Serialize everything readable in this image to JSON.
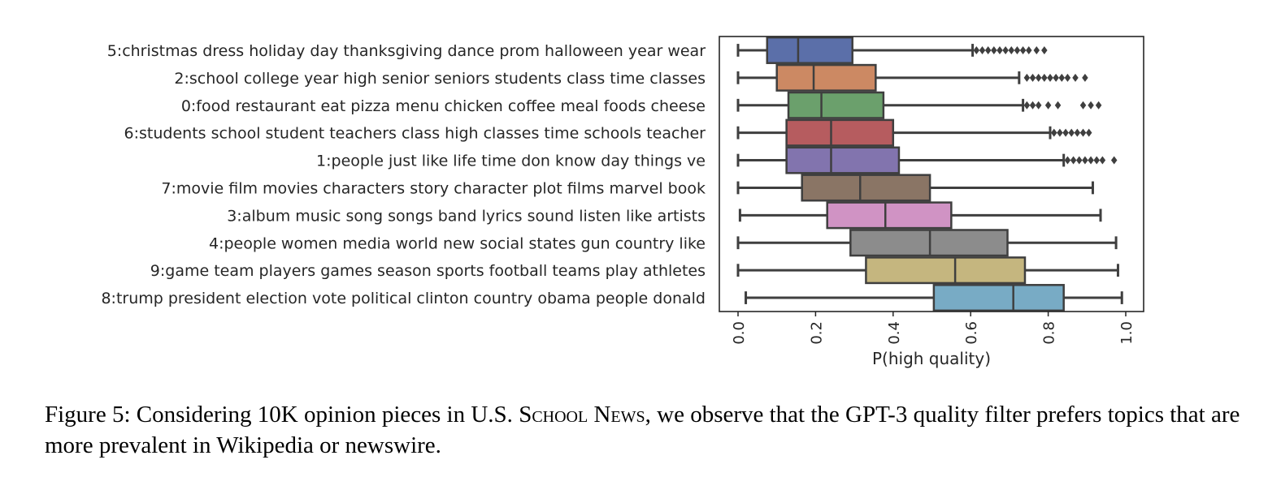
{
  "chart_data": {
    "type": "box",
    "orientation": "horizontal",
    "xlabel": "P(high quality)",
    "xlim": [
      -0.05,
      1.05
    ],
    "xticks": [
      "0.0",
      "0.2",
      "0.4",
      "0.6",
      "0.8",
      "1.0"
    ],
    "xtick_values": [
      0.0,
      0.2,
      0.4,
      0.6,
      0.8,
      1.0
    ],
    "grid": false,
    "categories": [
      {
        "label": "5:christmas dress holiday day thanksgiving dance prom halloween year wear",
        "color": "#5b6fa9",
        "min": 0.0,
        "q1": 0.075,
        "median": 0.155,
        "q3": 0.295,
        "max": 0.605,
        "outliers": [
          0.615,
          0.63,
          0.645,
          0.66,
          0.675,
          0.69,
          0.705,
          0.72,
          0.735,
          0.75,
          0.77,
          0.79
        ]
      },
      {
        "label": "2:school college year high senior seniors students class time classes",
        "color": "#cc8963",
        "min": 0.0,
        "q1": 0.1,
        "median": 0.195,
        "q3": 0.355,
        "max": 0.725,
        "outliers": [
          0.745,
          0.76,
          0.775,
          0.79,
          0.805,
          0.82,
          0.835,
          0.85,
          0.87,
          0.895
        ]
      },
      {
        "label": "0:food restaurant eat pizza menu chicken coffee meal foods cheese",
        "color": "#6ba06c",
        "min": 0.0,
        "q1": 0.13,
        "median": 0.215,
        "q3": 0.375,
        "max": 0.735,
        "outliers": [
          0.745,
          0.76,
          0.775,
          0.8,
          0.825,
          0.89,
          0.91,
          0.93
        ]
      },
      {
        "label": "6:students school student teachers class high classes time schools teacher",
        "color": "#b65c5f",
        "min": 0.0,
        "q1": 0.125,
        "median": 0.24,
        "q3": 0.4,
        "max": 0.805,
        "outliers": [
          0.815,
          0.83,
          0.845,
          0.86,
          0.875,
          0.89,
          0.905
        ]
      },
      {
        "label": "1:people just like life time don know day things ve",
        "color": "#8274ae",
        "min": 0.0,
        "q1": 0.125,
        "median": 0.24,
        "q3": 0.415,
        "max": 0.84,
        "outliers": [
          0.85,
          0.865,
          0.88,
          0.895,
          0.91,
          0.925,
          0.94,
          0.97
        ]
      },
      {
        "label": "7:movie film movies characters story character plot films marvel book",
        "color": "#8a7565",
        "min": 0.0,
        "q1": 0.165,
        "median": 0.315,
        "q3": 0.495,
        "max": 0.915,
        "outliers": []
      },
      {
        "label": "3:album music song songs band lyrics sound listen like artists",
        "color": "#d093c4",
        "min": 0.005,
        "q1": 0.23,
        "median": 0.38,
        "q3": 0.55,
        "max": 0.935,
        "outliers": []
      },
      {
        "label": "4:people women media world new social states gun country like",
        "color": "#8c8c8c",
        "min": 0.0,
        "q1": 0.29,
        "median": 0.495,
        "q3": 0.695,
        "max": 0.975,
        "outliers": []
      },
      {
        "label": "9:game team players games season sports football teams play athletes",
        "color": "#c5b67f",
        "min": 0.0,
        "q1": 0.33,
        "median": 0.56,
        "q3": 0.74,
        "max": 0.98,
        "outliers": []
      },
      {
        "label": "8:trump president election vote political clinton country obama people donald",
        "color": "#78abc5",
        "min": 0.02,
        "q1": 0.505,
        "median": 0.71,
        "q3": 0.84,
        "max": 0.99,
        "outliers": []
      }
    ]
  },
  "caption": {
    "prefix": "Figure 5: Considering 10K opinion pieces in U.S. ",
    "school": "School",
    "news": "News",
    "suffix": ", we observe that the GPT-3 quality filter prefers topics that are more prevalent in Wikipedia or newswire."
  }
}
